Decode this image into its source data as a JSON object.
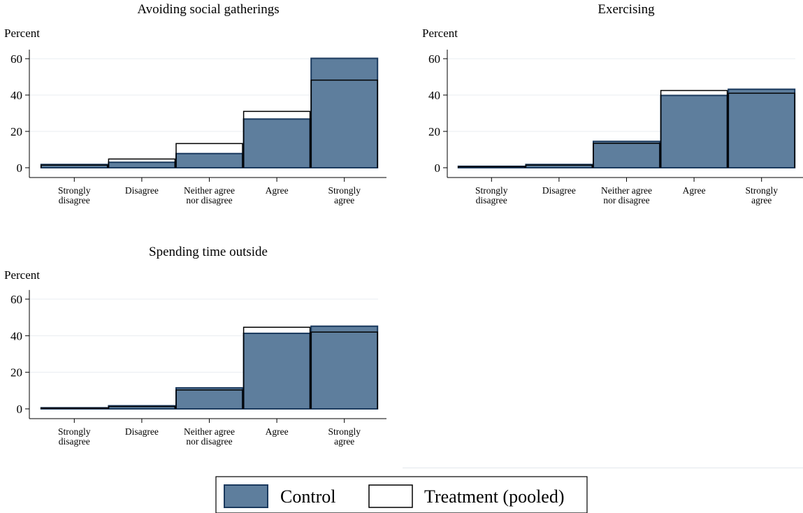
{
  "chart_data": [
    {
      "type": "bar",
      "title": "Avoiding social gatherings",
      "ylabel": "Percent",
      "xlabel": "",
      "ylim": [
        0,
        65
      ],
      "yticks": [
        0,
        20,
        40,
        60
      ],
      "categories": [
        "Strongly disagree",
        "Disagree",
        "Neither agree nor disagree",
        "Agree",
        "Strongly agree"
      ],
      "series": [
        {
          "name": "Control",
          "values": [
            1.8,
            3.0,
            7.8,
            26.8,
            60.2
          ]
        },
        {
          "name": "Treatment (pooled)",
          "values": [
            1.4,
            4.8,
            13.3,
            31.0,
            48.2
          ]
        }
      ]
    },
    {
      "type": "bar",
      "title": "Exercising",
      "ylabel": "Percent",
      "xlabel": "",
      "ylim": [
        0,
        65
      ],
      "yticks": [
        0,
        20,
        40,
        60
      ],
      "categories": [
        "Strongly disagree",
        "Disagree",
        "Neither agree nor disagree",
        "Agree",
        "Strongly agree"
      ],
      "series": [
        {
          "name": "Control",
          "values": [
            0.8,
            1.8,
            14.5,
            39.8,
            43.2
          ]
        },
        {
          "name": "Treatment (pooled)",
          "values": [
            0.6,
            1.4,
            13.4,
            42.5,
            41.0
          ]
        }
      ]
    },
    {
      "type": "bar",
      "title": "Spending time outside",
      "ylabel": "Percent",
      "xlabel": "",
      "ylim": [
        0,
        65
      ],
      "yticks": [
        0,
        20,
        40,
        60
      ],
      "categories": [
        "Strongly disagree",
        "Disagree",
        "Neither agree nor disagree",
        "Agree",
        "Strongly agree"
      ],
      "series": [
        {
          "name": "Control",
          "values": [
            0.6,
            1.7,
            11.5,
            41.3,
            45.2
          ]
        },
        {
          "name": "Treatment (pooled)",
          "values": [
            0.4,
            1.3,
            10.3,
            44.6,
            42.0
          ]
        }
      ]
    }
  ],
  "category_label_lines": [
    [
      "Strongly",
      "disagree"
    ],
    [
      "Disagree"
    ],
    [
      "Neither agree",
      "nor disagree"
    ],
    [
      "Agree"
    ],
    [
      "Strongly",
      "agree"
    ]
  ],
  "legend": {
    "items": [
      {
        "label": "Control",
        "fill": "#5e7e9d",
        "stroke": "#1b3a5e"
      },
      {
        "label": "Treatment (pooled)",
        "fill": "#ffffff",
        "stroke": "#000000"
      }
    ]
  },
  "colors": {
    "control_fill": "#5e7e9d",
    "control_stroke": "#1b3a5e",
    "treatment_stroke": "#000000",
    "gridline": "#e8ecf0"
  }
}
